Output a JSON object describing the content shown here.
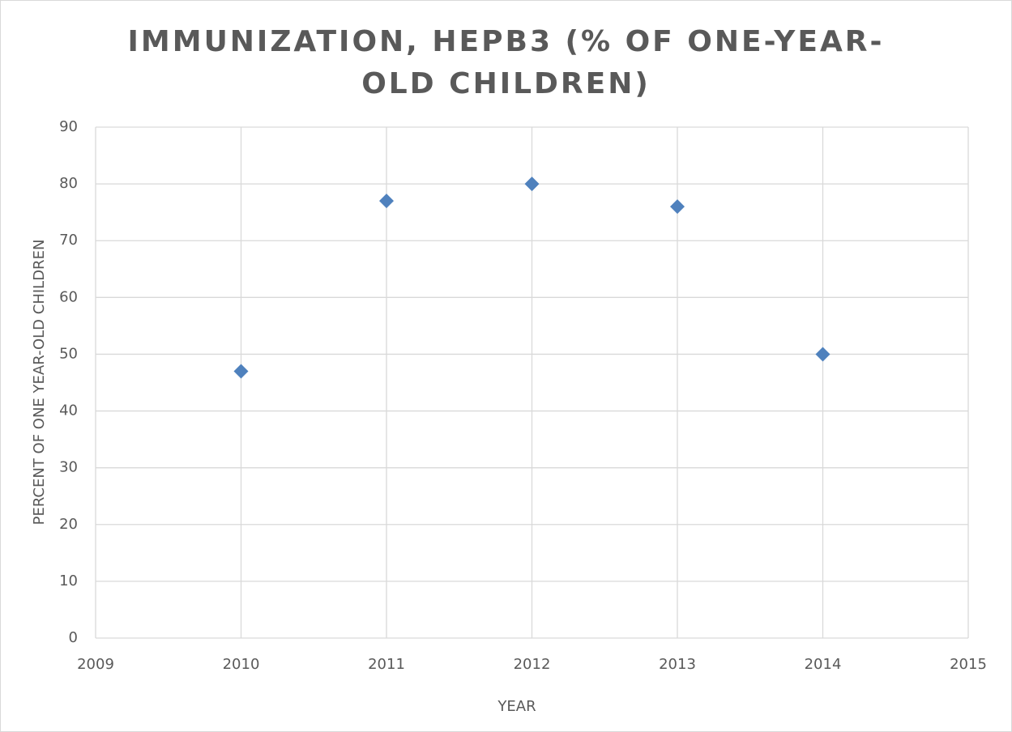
{
  "chart_data": {
    "type": "scatter",
    "title": "IMMUNIZATION, HEPB3 (% OF ONE-YEAR-OLD CHILDREN)",
    "x_label": "YEAR",
    "y_label": "PERCENT OF ONE YEAR-OLD CHILDREN",
    "x": [
      2010,
      2011,
      2012,
      2013,
      2014
    ],
    "values": [
      47,
      77,
      80,
      76,
      50
    ],
    "color": "#4f81bd",
    "xlim": [
      2009,
      2015
    ],
    "xticks": [
      2009,
      2010,
      2011,
      2012,
      2013,
      2014,
      2015
    ],
    "ylim": [
      0,
      90
    ],
    "yticks": [
      0,
      10,
      20,
      30,
      40,
      50,
      60,
      70,
      80,
      90
    ],
    "grid": true
  }
}
